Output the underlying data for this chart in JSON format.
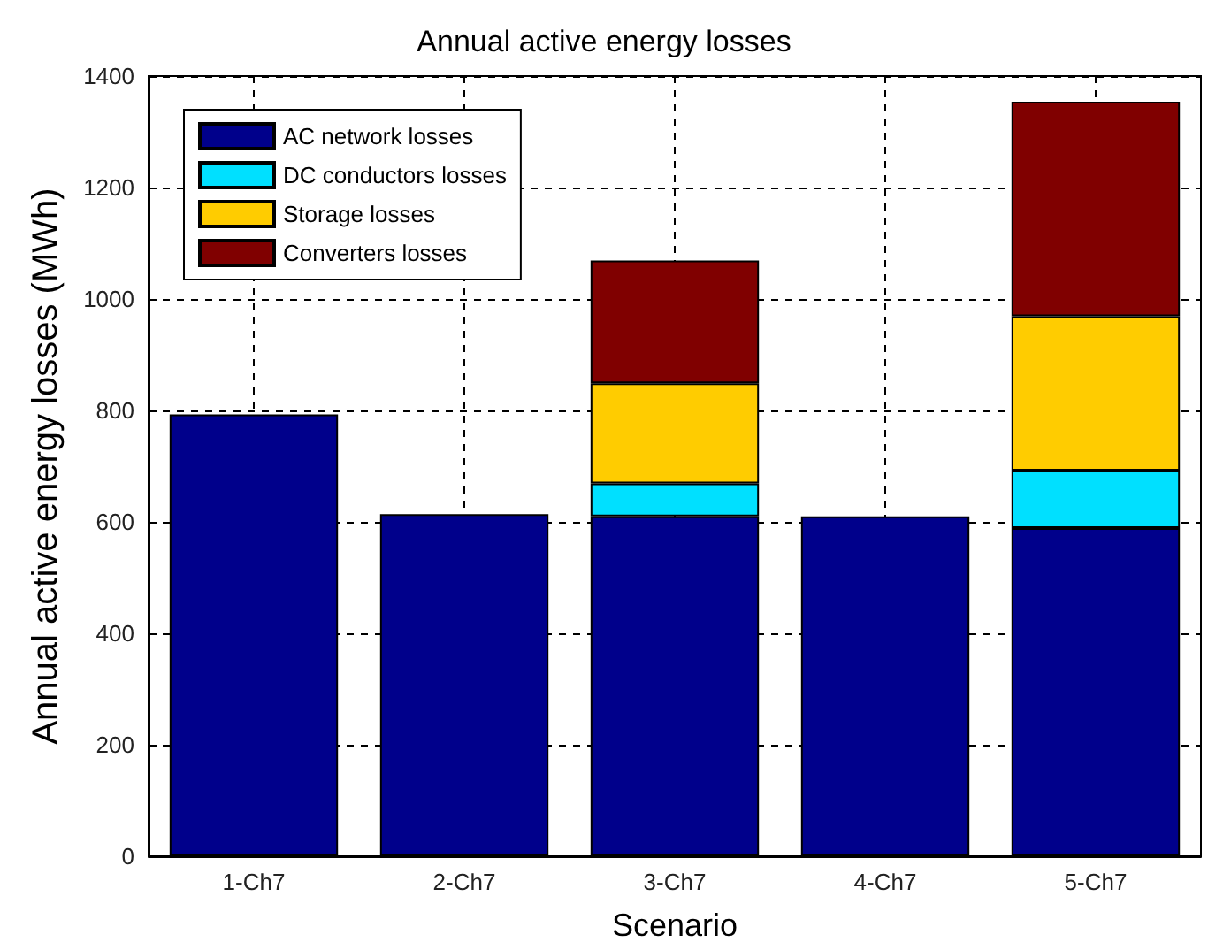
{
  "chart_data": {
    "type": "bar",
    "title": "Annual active energy losses",
    "xlabel": "Scenario",
    "ylabel": "Annual active energy losses (MWh)",
    "categories": [
      "1-Ch7",
      "2-Ch7",
      "3-Ch7",
      "4-Ch7",
      "5-Ch7"
    ],
    "series": [
      {
        "name": "AC network losses",
        "color": "#00008b",
        "values": [
          793,
          614,
          610,
          610,
          589
        ]
      },
      {
        "name": "DC conductors losses",
        "color": "#00e0ff",
        "values": [
          null,
          null,
          59,
          null,
          103
        ]
      },
      {
        "name": "Storage losses",
        "color": "#ffcc00",
        "values": [
          null,
          null,
          180,
          null,
          277
        ]
      },
      {
        "name": "Converters losses",
        "color": "#800000",
        "values": [
          null,
          null,
          220,
          null,
          385
        ]
      }
    ],
    "stacked": true,
    "ylim": [
      0,
      1400
    ],
    "yticks": [
      0,
      200,
      400,
      600,
      800,
      1000,
      1200,
      1400
    ],
    "grid": true,
    "legend": "top left"
  }
}
